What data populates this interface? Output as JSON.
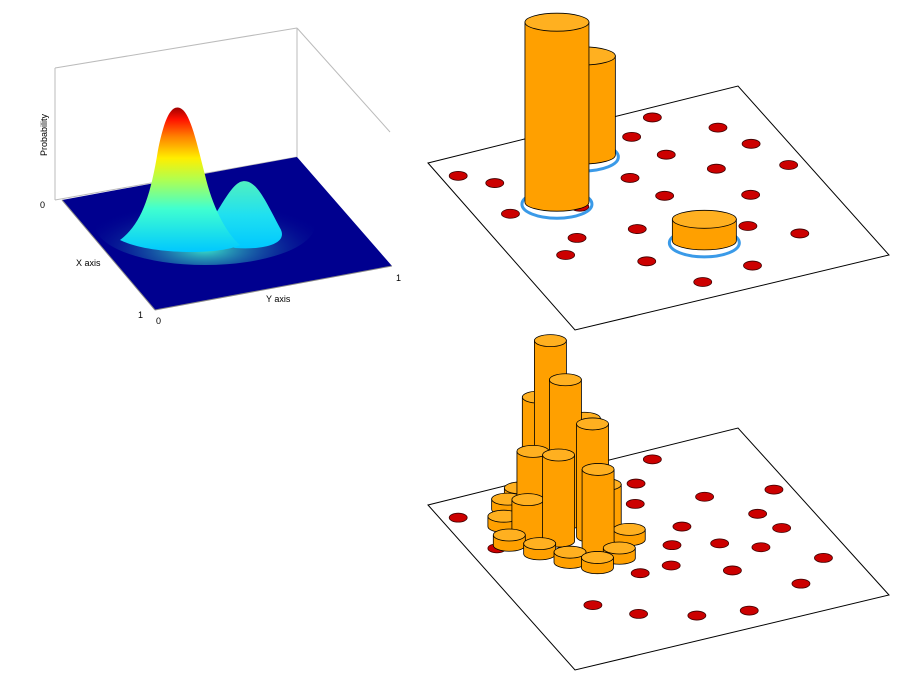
{
  "chart_data": [
    {
      "type": "surface",
      "xlabel": "X axis",
      "ylabel": "Y axis",
      "zlabel": "Probability",
      "x_ticks": [
        "0",
        "1"
      ],
      "y_ticks": [
        "0",
        "1"
      ],
      "z_ticks": [
        "0"
      ],
      "xlim": [
        0,
        1
      ],
      "ylim": [
        0,
        1
      ],
      "colormap": "jet",
      "background_color": "#00008f",
      "peaks": [
        {
          "x": 0.32,
          "y": 0.4,
          "height": 1.0
        },
        {
          "x": 0.55,
          "y": 0.55,
          "height": 0.42
        }
      ]
    },
    {
      "type": "3d-bar",
      "samples_color": "#cc0000",
      "bar_color": "#ffa000",
      "ring_color": "#3a9ae8",
      "samples": [
        [
          0.05,
          0.1
        ],
        [
          0.13,
          0.18
        ],
        [
          0.2,
          0.3
        ],
        [
          0.35,
          0.22
        ],
        [
          0.45,
          0.15
        ],
        [
          0.6,
          0.12
        ],
        [
          0.7,
          0.05
        ],
        [
          0.1,
          0.35
        ],
        [
          0.3,
          0.4
        ],
        [
          0.5,
          0.32
        ],
        [
          0.65,
          0.25
        ],
        [
          0.85,
          0.18
        ],
        [
          0.22,
          0.55
        ],
        [
          0.4,
          0.58
        ],
        [
          0.55,
          0.45
        ],
        [
          0.75,
          0.38
        ],
        [
          0.9,
          0.3
        ],
        [
          0.35,
          0.75
        ],
        [
          0.58,
          0.68
        ],
        [
          0.78,
          0.55
        ],
        [
          0.95,
          0.45
        ],
        [
          0.62,
          0.9
        ],
        [
          0.82,
          0.8
        ],
        [
          0.45,
          0.92
        ],
        [
          0.15,
          0.62
        ],
        [
          0.7,
          0.7
        ]
      ],
      "bars": [
        {
          "x": 0.25,
          "y": 0.35,
          "value": 1.0,
          "ring": true
        },
        {
          "x": 0.43,
          "y": 0.15,
          "value": 0.55,
          "ring": true
        },
        {
          "x": 0.55,
          "y": 0.72,
          "value": 0.12,
          "ring": true
        }
      ]
    },
    {
      "type": "3d-bar",
      "samples_color": "#cc0000",
      "bar_color": "#ffa000",
      "samples": [
        [
          0.05,
          0.1
        ],
        [
          0.4,
          0.05
        ],
        [
          0.5,
          0.02
        ],
        [
          0.6,
          0.15
        ],
        [
          0.7,
          0.05
        ],
        [
          0.55,
          0.25
        ],
        [
          0.08,
          0.3
        ],
        [
          0.48,
          0.38
        ],
        [
          0.62,
          0.42
        ],
        [
          0.75,
          0.3
        ],
        [
          0.68,
          0.55
        ],
        [
          0.85,
          0.45
        ],
        [
          0.95,
          0.35
        ],
        [
          0.2,
          0.7
        ],
        [
          0.3,
          0.8
        ],
        [
          0.45,
          0.88
        ],
        [
          0.6,
          0.92
        ],
        [
          0.8,
          0.85
        ],
        [
          0.92,
          0.75
        ],
        [
          0.5,
          0.6
        ],
        [
          0.78,
          0.62
        ],
        [
          0.88,
          0.55
        ],
        [
          0.2,
          0.2
        ],
        [
          0.3,
          0.3
        ],
        [
          0.55,
          0.5
        ],
        [
          0.65,
          0.7
        ],
        [
          0.4,
          0.6
        ]
      ],
      "bars": [
        {
          "x": 0.15,
          "y": 0.2,
          "value": 0.05
        },
        {
          "x": 0.2,
          "y": 0.12,
          "value": 0.05
        },
        {
          "x": 0.26,
          "y": 0.08,
          "value": 0.05
        },
        {
          "x": 0.33,
          "y": 0.05,
          "value": 0.12
        },
        {
          "x": 0.12,
          "y": 0.3,
          "value": 0.05
        },
        {
          "x": 0.18,
          "y": 0.38,
          "value": 0.05
        },
        {
          "x": 0.24,
          "y": 0.46,
          "value": 0.05
        },
        {
          "x": 0.3,
          "y": 0.52,
          "value": 0.05
        },
        {
          "x": 0.38,
          "y": 0.5,
          "value": 0.05
        },
        {
          "x": 0.45,
          "y": 0.42,
          "value": 0.05
        },
        {
          "x": 0.28,
          "y": 0.16,
          "value": 0.55
        },
        {
          "x": 0.32,
          "y": 0.26,
          "value": 0.7
        },
        {
          "x": 0.36,
          "y": 0.36,
          "value": 0.55
        },
        {
          "x": 0.22,
          "y": 0.25,
          "value": 0.38
        },
        {
          "x": 0.4,
          "y": 0.22,
          "value": 0.45
        },
        {
          "x": 0.26,
          "y": 0.34,
          "value": 0.42
        },
        {
          "x": 0.34,
          "y": 0.44,
          "value": 0.4
        },
        {
          "x": 0.18,
          "y": 0.3,
          "value": 0.2
        },
        {
          "x": 0.42,
          "y": 0.32,
          "value": 0.2
        },
        {
          "x": 0.3,
          "y": 0.2,
          "value": 0.85
        },
        {
          "x": 0.38,
          "y": 0.12,
          "value": 0.25
        }
      ]
    }
  ]
}
